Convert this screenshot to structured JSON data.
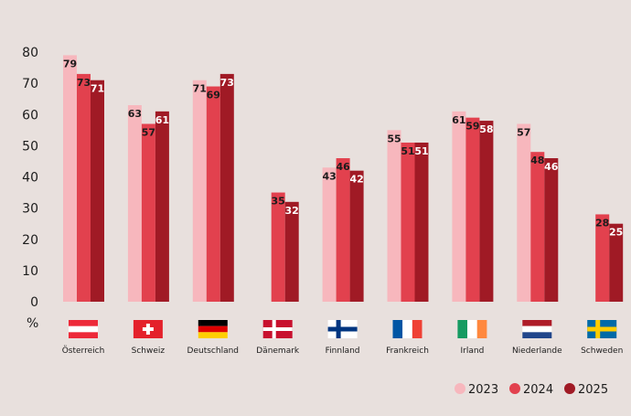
{
  "chart_data": {
    "type": "bar",
    "title": "",
    "xlabel": "",
    "ylabel": "%",
    "ylim": [
      0,
      80
    ],
    "yticks": [
      0,
      10,
      20,
      30,
      40,
      50,
      60,
      70,
      80
    ],
    "grid": false,
    "legend_position": "bottom-right",
    "categories": [
      "Österreich",
      "Schweiz",
      "Deutschland",
      "Dänemark",
      "Finnland",
      "Frankreich",
      "Irland",
      "Niederlande",
      "Schweden"
    ],
    "series": [
      {
        "name": "2023",
        "color": "#f7b7bd",
        "label_color": "#1c1c1c",
        "values": [
          79,
          63,
          71,
          null,
          43,
          55,
          61,
          57,
          null
        ]
      },
      {
        "name": "2024",
        "color": "#e2414e",
        "label_color": "#1c1c1c",
        "values": [
          73,
          57,
          69,
          35,
          46,
          51,
          59,
          48,
          28
        ]
      },
      {
        "name": "2025",
        "color": "#a01a25",
        "label_color": "#ffffff",
        "values": [
          71,
          61,
          73,
          32,
          42,
          51,
          58,
          46,
          25
        ]
      }
    ],
    "flags": [
      {
        "country": "Österreich",
        "icon": "flag-austria"
      },
      {
        "country": "Schweiz",
        "icon": "flag-switzerland"
      },
      {
        "country": "Deutschland",
        "icon": "flag-germany"
      },
      {
        "country": "Dänemark",
        "icon": "flag-denmark"
      },
      {
        "country": "Finnland",
        "icon": "flag-finland"
      },
      {
        "country": "Frankreich",
        "icon": "flag-france"
      },
      {
        "country": "Irland",
        "icon": "flag-ireland"
      },
      {
        "country": "Niederlande",
        "icon": "flag-netherlands"
      },
      {
        "country": "Schweden",
        "icon": "flag-sweden"
      }
    ]
  }
}
